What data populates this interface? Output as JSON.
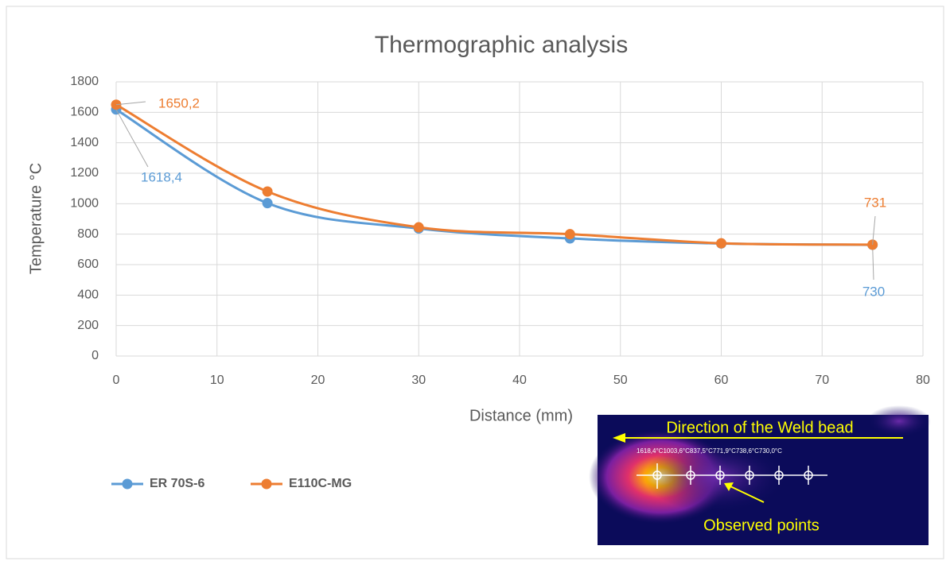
{
  "chart_data": {
    "type": "line",
    "title": "Thermographic analysis",
    "x_label": "Distance (mm)",
    "y_label": "Temperature °C",
    "x": [
      0,
      15,
      30,
      45,
      60,
      75
    ],
    "series": [
      {
        "name": "ER 70S-6",
        "color": "#5b9bd5",
        "values": [
          1618.4,
          1003.6,
          837.5,
          771.9,
          738.6,
          730
        ],
        "value_labels": [
          "1618,4",
          null,
          null,
          null,
          null,
          "730"
        ]
      },
      {
        "name": "E110C-MG",
        "color": "#ed7d31",
        "values": [
          1650.2,
          1080,
          845,
          800,
          740,
          731
        ],
        "value_labels": [
          "1650,2",
          null,
          null,
          null,
          null,
          "731"
        ]
      }
    ],
    "xlim": [
      0,
      80
    ],
    "xticks": [
      0,
      10,
      20,
      30,
      40,
      50,
      60,
      70,
      80
    ],
    "ylim": [
      0,
      1800
    ],
    "yticks": [
      0,
      200,
      400,
      600,
      800,
      1000,
      1200,
      1400,
      1600,
      1800
    ],
    "grid": true,
    "smooth": true,
    "legend": "bottom-left"
  },
  "inset": {
    "direction_label": "Direction of the Weld bead",
    "readings": "1618,4°C1003,6°C837,5°C771,9°C738,6°C730,0°C",
    "points_label": "Observed points"
  }
}
